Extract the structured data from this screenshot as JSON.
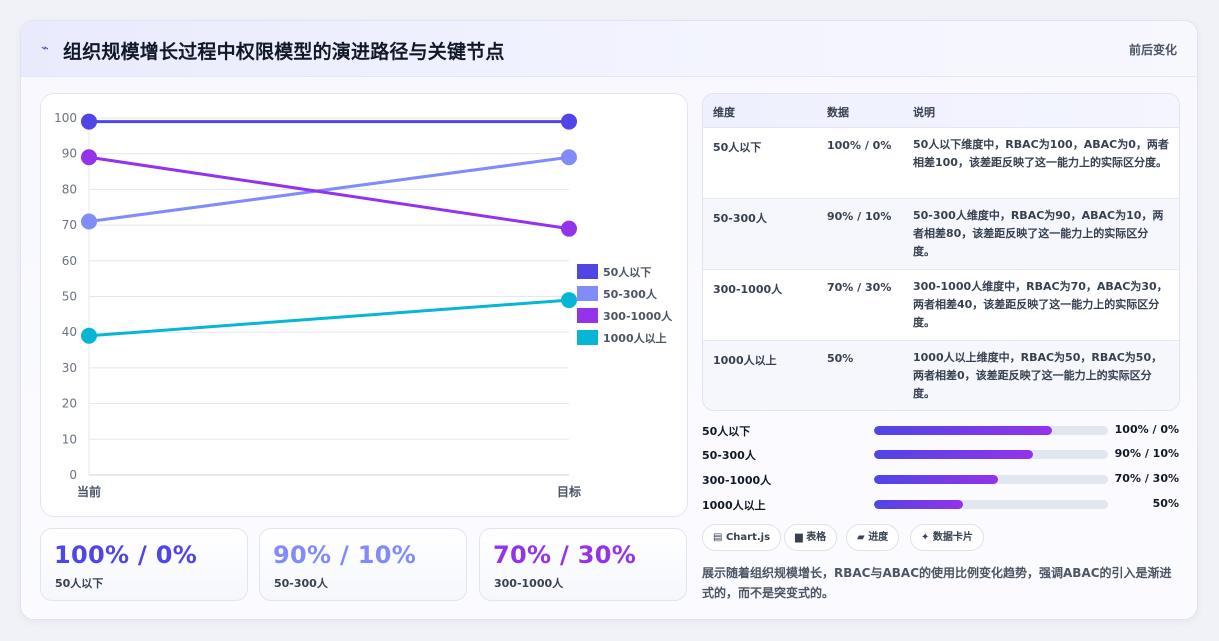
{
  "header": {
    "icon": "sparkle-icon",
    "title": "组织规模增长过程中权限模型的演进路径与关键节点",
    "right_label": "前后变化"
  },
  "chart_data": {
    "type": "line",
    "x": [
      "当前",
      "目标"
    ],
    "ylim": [
      0,
      100
    ],
    "yticks": [
      0,
      10,
      20,
      30,
      40,
      50,
      60,
      70,
      80,
      90,
      100
    ],
    "grid": true,
    "legend_position": "right",
    "series": [
      {
        "name": "50人以下",
        "values": [
          99,
          99
        ],
        "color": "#4f46e5"
      },
      {
        "name": "50-300人",
        "values": [
          71,
          89
        ],
        "color": "#818cf8"
      },
      {
        "name": "300-1000人",
        "values": [
          89,
          69
        ],
        "color": "#9333ea"
      },
      {
        "name": "1000人以上",
        "values": [
          39,
          49
        ],
        "color": "#06b6d4"
      }
    ]
  },
  "kpis": [
    {
      "value": "100% / 0%",
      "label": "50人以下",
      "color": "#4f46e5"
    },
    {
      "value": "90% / 10%",
      "label": "50-300人",
      "color": "#818cf8"
    },
    {
      "value": "70% / 30%",
      "label": "300-1000人",
      "color": "#9333ea"
    }
  ],
  "table": {
    "headers": [
      "维度",
      "数据",
      "说明"
    ],
    "rows": [
      {
        "dim": "50人以下",
        "data": "100% / 0%",
        "desc": "50人以下维度中，RBAC为100，ABAC为0，两者相差100，该差距反映了这一能力上的实际区分度。"
      },
      {
        "dim": "50-300人",
        "data": "90% / 10%",
        "desc": "50-300人维度中，RBAC为90，ABAC为10，两者相差80，该差距反映了这一能力上的实际区分度。"
      },
      {
        "dim": "300-1000人",
        "data": "70% / 30%",
        "desc": "300-1000人维度中，RBAC为70，ABAC为30，两者相差40，该差距反映了这一能力上的实际区分度。"
      },
      {
        "dim": "1000人以上",
        "data": "50%",
        "desc": "1000人以上维度中，RBAC为50，RBAC为50，两者相差0，该差距反映了这一能力上的实际区分度。"
      }
    ]
  },
  "progress": [
    {
      "label": "50人以下",
      "value": "100% / 0%",
      "fraction": 0.76
    },
    {
      "label": "50-300人",
      "value": "90% / 10%",
      "fraction": 0.68
    },
    {
      "label": "300-1000人",
      "value": "70% / 30%",
      "fraction": 0.53
    },
    {
      "label": "1000人以上",
      "value": "50%",
      "fraction": 0.38
    }
  ],
  "tags": [
    {
      "icon": "chart-icon",
      "glyph": "▤",
      "label": "Chart.js"
    },
    {
      "icon": "table-icon",
      "glyph": "▆",
      "label": "表格"
    },
    {
      "icon": "progress-icon",
      "glyph": "▰",
      "label": "进度"
    },
    {
      "icon": "sparkle-icon",
      "glyph": "✦",
      "label": "数据卡片"
    }
  ],
  "note": "展示随着组织规模增长，RBAC与ABAC的使用比例变化趋势，强调ABAC的引入是渐进式的，而不是突变式的。"
}
